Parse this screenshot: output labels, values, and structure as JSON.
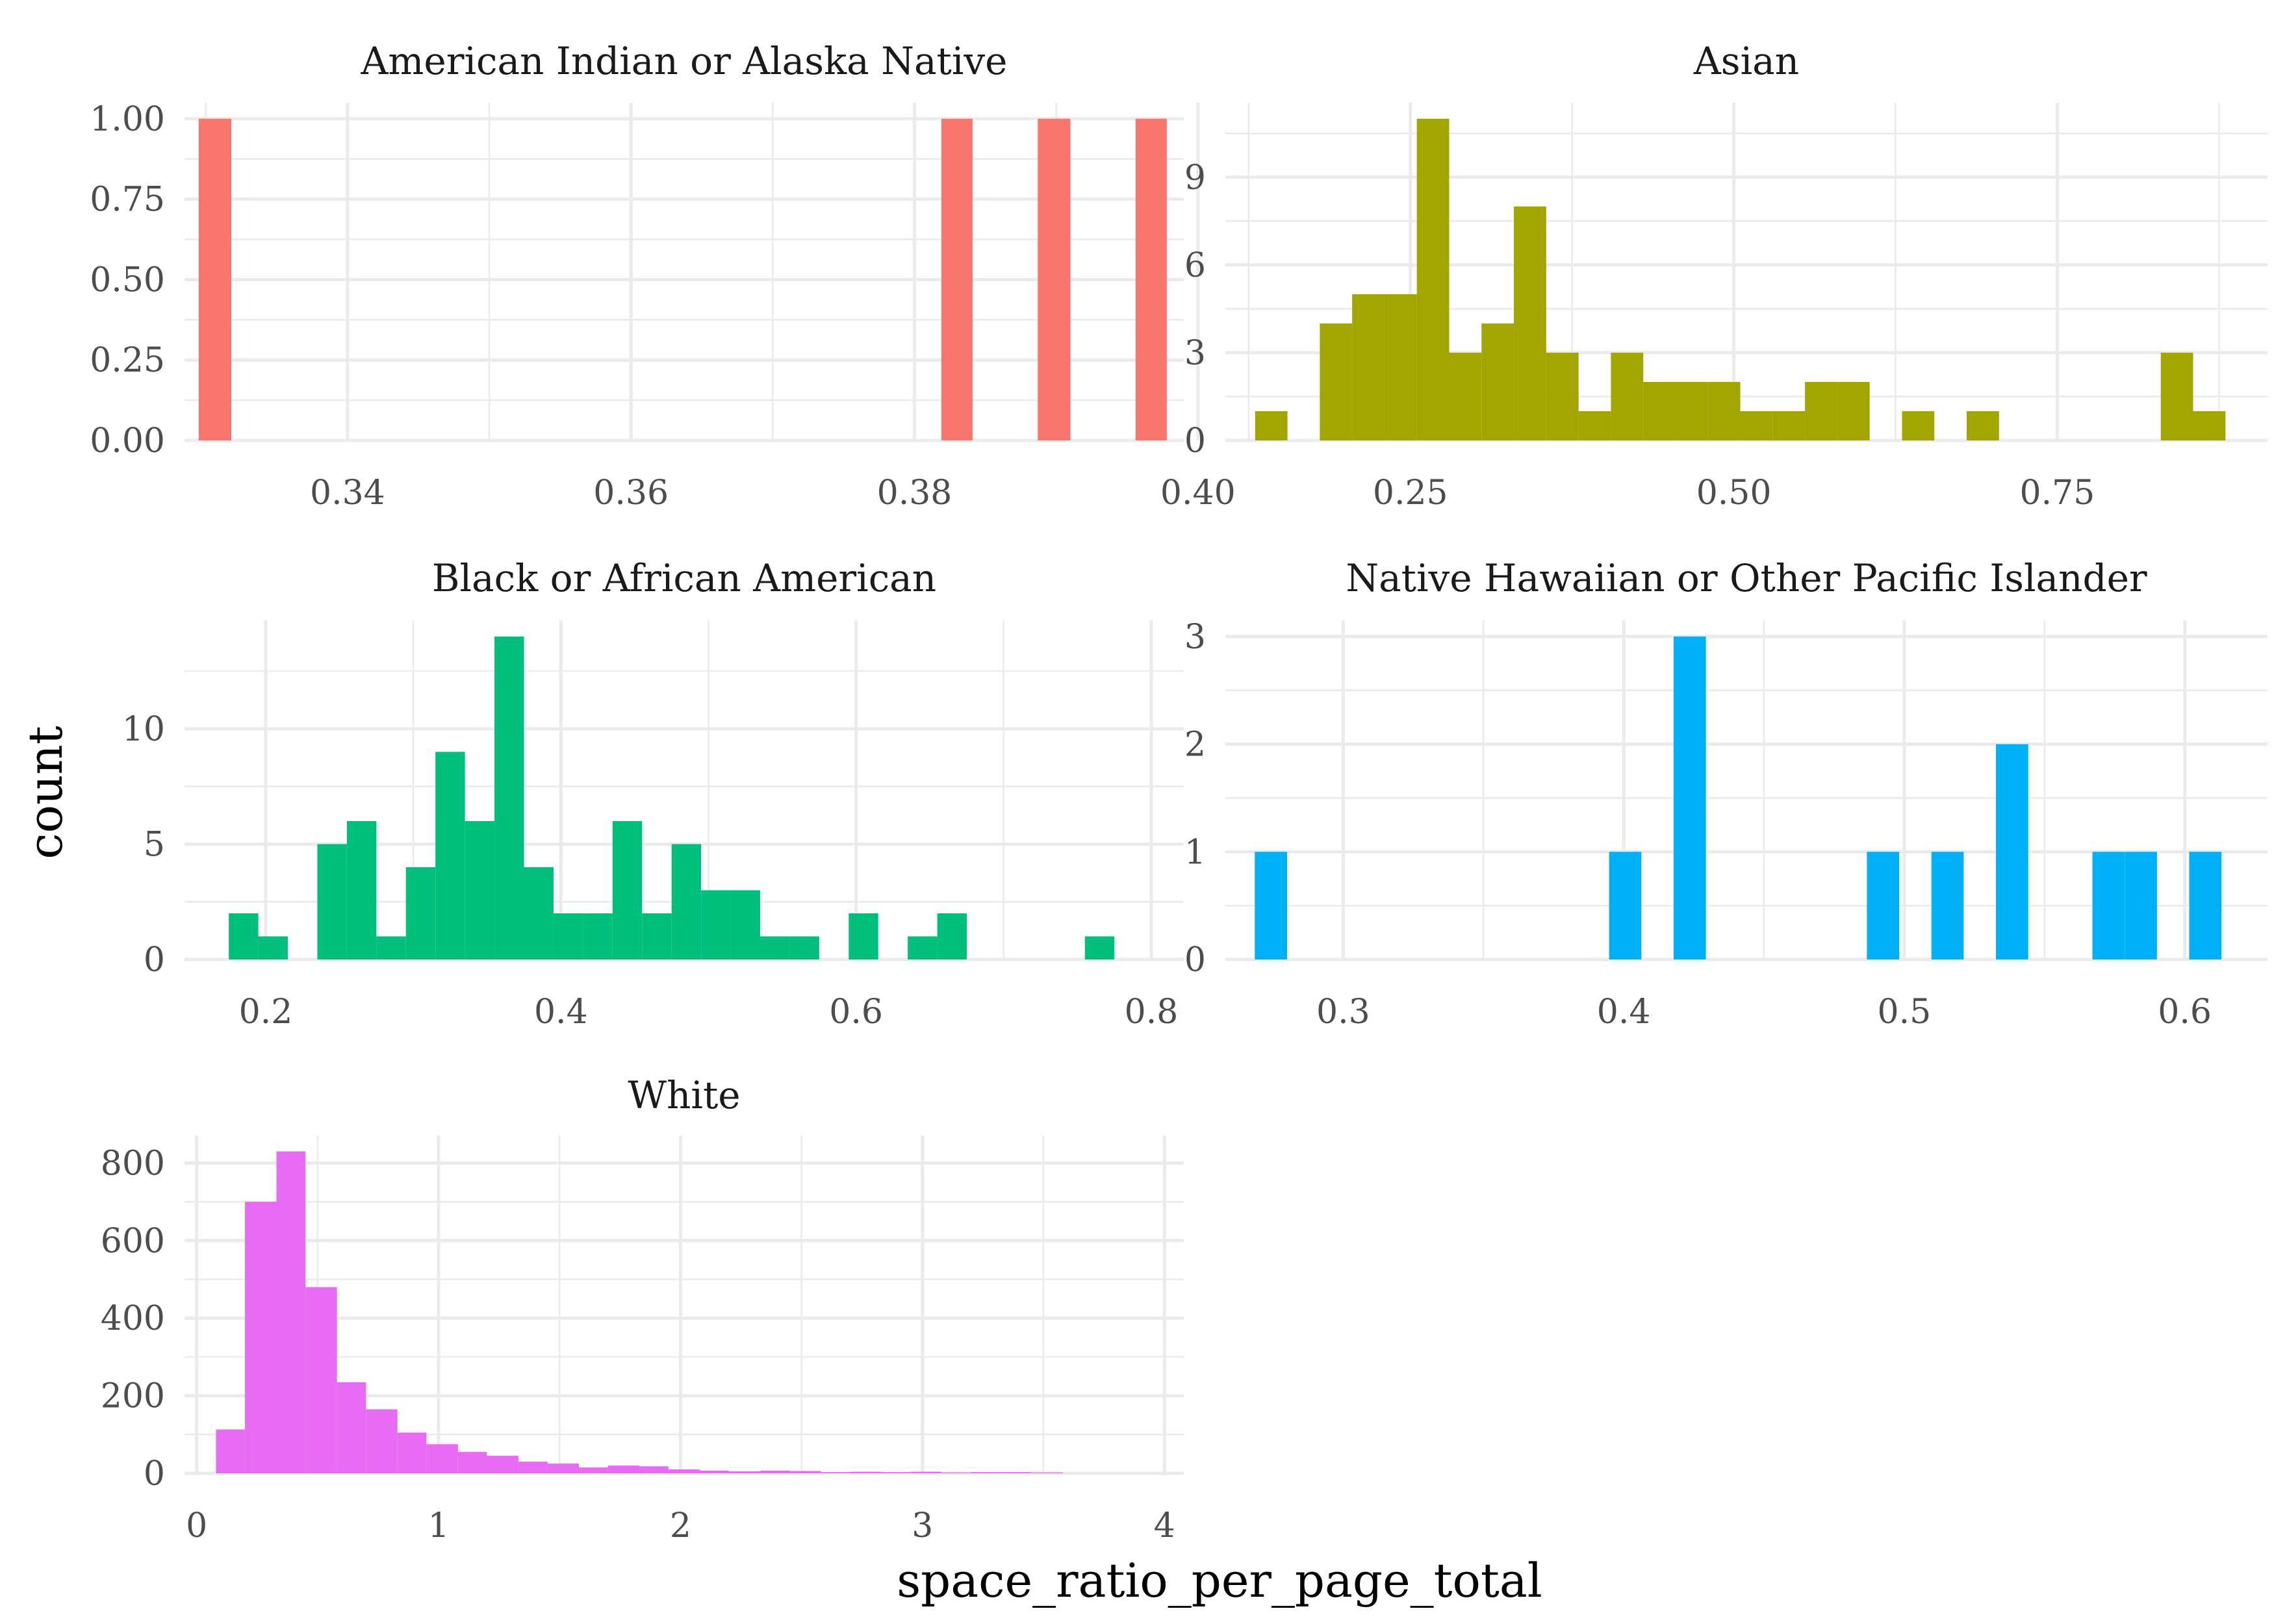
{
  "chart_data": {
    "type": "bar",
    "x_label": "space_ratio_per_page_total",
    "y_label": "count",
    "legend": "none",
    "grid": true,
    "panels": [
      {
        "title": "American Indian or Alaska Native",
        "color": "#F8766D",
        "xlim": [
          0.3285,
          0.399
        ],
        "ylim": [
          0,
          1.05
        ],
        "x_ticks": [
          0.34,
          0.36,
          0.38,
          0.4
        ],
        "x_tick_labels": [
          "0.34",
          "0.36",
          "0.38",
          "0.40"
        ],
        "y_ticks": [
          0,
          0.25,
          0.5,
          0.75,
          1
        ],
        "y_tick_labels": [
          "0.00",
          "0.25",
          "0.50",
          "0.75",
          "1.00"
        ],
        "bins": [
          {
            "x0": 0.3295,
            "x1": 0.3318,
            "count": 1
          },
          {
            "x0": 0.3819,
            "x1": 0.3841,
            "count": 1
          },
          {
            "x0": 0.3887,
            "x1": 0.391,
            "count": 1
          },
          {
            "x0": 0.3956,
            "x1": 0.3978,
            "count": 1
          }
        ]
      },
      {
        "title": "Asian",
        "color": "#A3A500",
        "xlim": [
          0.107,
          0.9125
        ],
        "ylim": [
          0,
          11.55
        ],
        "x_ticks": [
          0.25,
          0.5,
          0.75
        ],
        "x_tick_labels": [
          "0.25",
          "0.50",
          "0.75"
        ],
        "y_ticks": [
          0,
          3,
          6,
          9
        ],
        "y_tick_labels": [
          "0",
          "3",
          "6",
          "9"
        ],
        "bins": [
          {
            "x0": 0.13,
            "x1": 0.155,
            "count": 1
          },
          {
            "x0": 0.155,
            "x1": 0.18,
            "count": 0
          },
          {
            "x0": 0.18,
            "x1": 0.205,
            "count": 4
          },
          {
            "x0": 0.205,
            "x1": 0.23,
            "count": 5
          },
          {
            "x0": 0.23,
            "x1": 0.255,
            "count": 5
          },
          {
            "x0": 0.255,
            "x1": 0.28,
            "count": 11
          },
          {
            "x0": 0.28,
            "x1": 0.305,
            "count": 3
          },
          {
            "x0": 0.305,
            "x1": 0.33,
            "count": 4
          },
          {
            "x0": 0.33,
            "x1": 0.355,
            "count": 8
          },
          {
            "x0": 0.355,
            "x1": 0.38,
            "count": 3
          },
          {
            "x0": 0.38,
            "x1": 0.405,
            "count": 1
          },
          {
            "x0": 0.405,
            "x1": 0.43,
            "count": 3
          },
          {
            "x0": 0.43,
            "x1": 0.455,
            "count": 2
          },
          {
            "x0": 0.455,
            "x1": 0.48,
            "count": 2
          },
          {
            "x0": 0.48,
            "x1": 0.505,
            "count": 2
          },
          {
            "x0": 0.505,
            "x1": 0.53,
            "count": 1
          },
          {
            "x0": 0.53,
            "x1": 0.555,
            "count": 1
          },
          {
            "x0": 0.555,
            "x1": 0.58,
            "count": 2
          },
          {
            "x0": 0.58,
            "x1": 0.605,
            "count": 2
          },
          {
            "x0": 0.605,
            "x1": 0.63,
            "count": 0
          },
          {
            "x0": 0.63,
            "x1": 0.655,
            "count": 1
          },
          {
            "x0": 0.655,
            "x1": 0.68,
            "count": 0
          },
          {
            "x0": 0.68,
            "x1": 0.705,
            "count": 1
          },
          {
            "x0": 0.705,
            "x1": 0.73,
            "count": 0
          },
          {
            "x0": 0.73,
            "x1": 0.755,
            "count": 0
          },
          {
            "x0": 0.755,
            "x1": 0.78,
            "count": 0
          },
          {
            "x0": 0.78,
            "x1": 0.805,
            "count": 0
          },
          {
            "x0": 0.805,
            "x1": 0.83,
            "count": 0
          },
          {
            "x0": 0.83,
            "x1": 0.855,
            "count": 3
          },
          {
            "x0": 0.855,
            "x1": 0.88,
            "count": 1
          }
        ]
      },
      {
        "title": "Black or African American",
        "color": "#00BF7D",
        "xlim": [
          0.145,
          0.822
        ],
        "ylim": [
          0,
          14.7
        ],
        "x_ticks": [
          0.2,
          0.4,
          0.6,
          0.8
        ],
        "x_tick_labels": [
          "0.2",
          "0.4",
          "0.6",
          "0.8"
        ],
        "y_ticks": [
          0,
          5,
          10
        ],
        "y_tick_labels": [
          "0",
          "5",
          "10"
        ],
        "bins": [
          {
            "x0": 0.175,
            "x1": 0.195,
            "count": 2
          },
          {
            "x0": 0.195,
            "x1": 0.215,
            "count": 1
          },
          {
            "x0": 0.215,
            "x1": 0.235,
            "count": 0
          },
          {
            "x0": 0.235,
            "x1": 0.255,
            "count": 5
          },
          {
            "x0": 0.255,
            "x1": 0.275,
            "count": 6
          },
          {
            "x0": 0.275,
            "x1": 0.295,
            "count": 1
          },
          {
            "x0": 0.295,
            "x1": 0.315,
            "count": 4
          },
          {
            "x0": 0.315,
            "x1": 0.335,
            "count": 9
          },
          {
            "x0": 0.335,
            "x1": 0.355,
            "count": 6
          },
          {
            "x0": 0.355,
            "x1": 0.375,
            "count": 14
          },
          {
            "x0": 0.375,
            "x1": 0.395,
            "count": 4
          },
          {
            "x0": 0.395,
            "x1": 0.415,
            "count": 2
          },
          {
            "x0": 0.415,
            "x1": 0.435,
            "count": 2
          },
          {
            "x0": 0.435,
            "x1": 0.455,
            "count": 6
          },
          {
            "x0": 0.455,
            "x1": 0.475,
            "count": 2
          },
          {
            "x0": 0.475,
            "x1": 0.495,
            "count": 5
          },
          {
            "x0": 0.495,
            "x1": 0.515,
            "count": 3
          },
          {
            "x0": 0.515,
            "x1": 0.535,
            "count": 3
          },
          {
            "x0": 0.535,
            "x1": 0.555,
            "count": 1
          },
          {
            "x0": 0.555,
            "x1": 0.575,
            "count": 1
          },
          {
            "x0": 0.575,
            "x1": 0.595,
            "count": 0
          },
          {
            "x0": 0.595,
            "x1": 0.615,
            "count": 2
          },
          {
            "x0": 0.615,
            "x1": 0.635,
            "count": 0
          },
          {
            "x0": 0.635,
            "x1": 0.655,
            "count": 1
          },
          {
            "x0": 0.655,
            "x1": 0.675,
            "count": 2
          },
          {
            "x0": 0.675,
            "x1": 0.695,
            "count": 0
          },
          {
            "x0": 0.695,
            "x1": 0.715,
            "count": 0
          },
          {
            "x0": 0.715,
            "x1": 0.735,
            "count": 0
          },
          {
            "x0": 0.735,
            "x1": 0.755,
            "count": 0
          },
          {
            "x0": 0.755,
            "x1": 0.775,
            "count": 1
          }
        ]
      },
      {
        "title": "Native Hawaiian or Other Pacific Islander",
        "color": "#00B0F6",
        "xlim": [
          0.258,
          0.6295
        ],
        "ylim": [
          0,
          3.15
        ],
        "x_ticks": [
          0.3,
          0.4,
          0.5,
          0.6
        ],
        "x_tick_labels": [
          "0.3",
          "0.4",
          "0.5",
          "0.6"
        ],
        "y_ticks": [
          0,
          1,
          2,
          3
        ],
        "y_tick_labels": [
          "0",
          "1",
          "2",
          "3"
        ],
        "bins": [
          {
            "x0": 0.2685,
            "x1": 0.28,
            "count": 1
          },
          {
            "x0": 0.3948,
            "x1": 0.4063,
            "count": 1
          },
          {
            "x0": 0.4178,
            "x1": 0.4293,
            "count": 3
          },
          {
            "x0": 0.4867,
            "x1": 0.4982,
            "count": 1
          },
          {
            "x0": 0.5097,
            "x1": 0.5212,
            "count": 1
          },
          {
            "x0": 0.5327,
            "x1": 0.5442,
            "count": 2
          },
          {
            "x0": 0.5671,
            "x1": 0.5786,
            "count": 1
          },
          {
            "x0": 0.5786,
            "x1": 0.5901,
            "count": 1
          },
          {
            "x0": 0.6016,
            "x1": 0.6131,
            "count": 1
          }
        ]
      },
      {
        "title": "White",
        "color": "#E76BF3",
        "xlim": [
          -0.05,
          4.08
        ],
        "ylim": [
          0,
          871
        ],
        "x_ticks": [
          0,
          1,
          2,
          3,
          4
        ],
        "x_tick_labels": [
          "0",
          "1",
          "2",
          "3",
          "4"
        ],
        "y_ticks": [
          0,
          200,
          400,
          600,
          800
        ],
        "y_tick_labels": [
          "0",
          "200",
          "400",
          "600",
          "800"
        ],
        "bins": [
          {
            "x0": 0.08,
            "x1": 0.2,
            "count": 113
          },
          {
            "x0": 0.2,
            "x1": 0.33,
            "count": 700
          },
          {
            "x0": 0.33,
            "x1": 0.45,
            "count": 830
          },
          {
            "x0": 0.45,
            "x1": 0.58,
            "count": 480
          },
          {
            "x0": 0.58,
            "x1": 0.7,
            "count": 235
          },
          {
            "x0": 0.7,
            "x1": 0.83,
            "count": 165
          },
          {
            "x0": 0.83,
            "x1": 0.95,
            "count": 105
          },
          {
            "x0": 0.95,
            "x1": 1.08,
            "count": 75
          },
          {
            "x0": 1.08,
            "x1": 1.2,
            "count": 55
          },
          {
            "x0": 1.2,
            "x1": 1.33,
            "count": 45
          },
          {
            "x0": 1.33,
            "x1": 1.45,
            "count": 30
          },
          {
            "x0": 1.45,
            "x1": 1.58,
            "count": 25
          },
          {
            "x0": 1.58,
            "x1": 1.7,
            "count": 15
          },
          {
            "x0": 1.7,
            "x1": 1.83,
            "count": 20
          },
          {
            "x0": 1.83,
            "x1": 1.95,
            "count": 18
          },
          {
            "x0": 1.95,
            "x1": 2.08,
            "count": 10
          },
          {
            "x0": 2.08,
            "x1": 2.2,
            "count": 7
          },
          {
            "x0": 2.2,
            "x1": 2.33,
            "count": 5
          },
          {
            "x0": 2.33,
            "x1": 2.45,
            "count": 7
          },
          {
            "x0": 2.45,
            "x1": 2.58,
            "count": 6
          },
          {
            "x0": 2.58,
            "x1": 2.7,
            "count": 3
          },
          {
            "x0": 2.7,
            "x1": 2.83,
            "count": 4
          },
          {
            "x0": 2.83,
            "x1": 2.95,
            "count": 3
          },
          {
            "x0": 2.95,
            "x1": 3.08,
            "count": 4
          },
          {
            "x0": 3.08,
            "x1": 3.2,
            "count": 2
          },
          {
            "x0": 3.2,
            "x1": 3.33,
            "count": 3
          },
          {
            "x0": 3.33,
            "x1": 3.45,
            "count": 3
          },
          {
            "x0": 3.45,
            "x1": 3.58,
            "count": 2
          }
        ]
      }
    ]
  }
}
